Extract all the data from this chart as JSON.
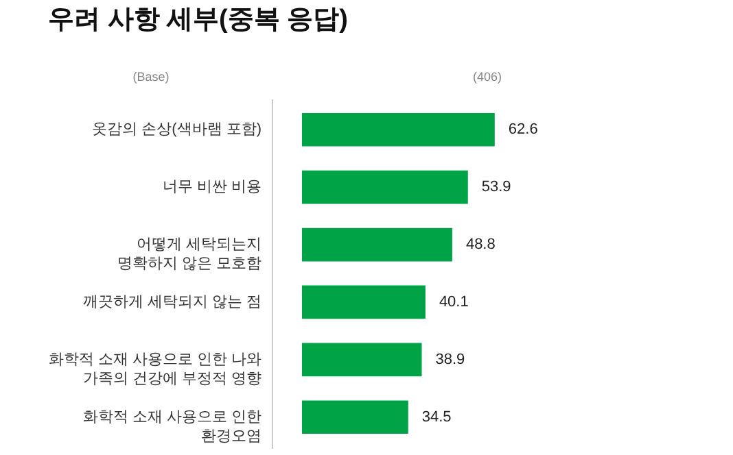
{
  "chart_data": {
    "type": "bar",
    "orientation": "horizontal",
    "title": "우려 사항 세부(중복 응답)",
    "annotations": [
      "(Base)",
      "(406)"
    ],
    "categories": [
      "옷감의 손상(색바램 포함)",
      "너무 비싼 비용",
      "어떻게 세탁되는지\n명확하지 않은 모호함",
      "깨끗하게 세탁되지 않는 점",
      "화학적 소재 사용으로 인한 나와\n가족의 건강에 부정적 영향",
      "화학적 소재 사용으로 인한\n환경오염"
    ],
    "values": [
      62.6,
      53.9,
      48.8,
      40.1,
      38.9,
      34.5
    ],
    "color": "#00a346",
    "data_labels": true,
    "xlim": [
      0,
      140
    ],
    "tick_labels": "y"
  }
}
